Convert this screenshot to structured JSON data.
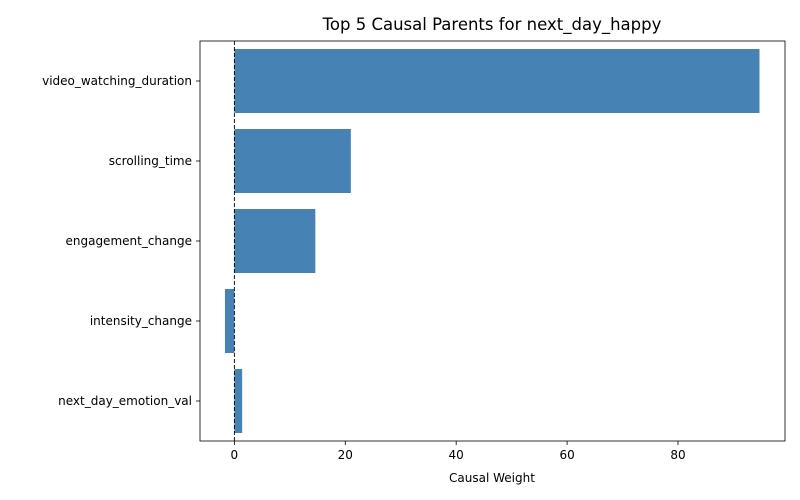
{
  "chart_data": {
    "type": "bar",
    "orientation": "horizontal",
    "title": "Top 5 Causal Parents for next_day_happy",
    "xlabel": "Causal Weight",
    "ylabel": "",
    "categories": [
      "video_watching_duration",
      "scrolling_time",
      "engagement_change",
      "intensity_change",
      "next_day_emotion_val"
    ],
    "values": [
      94.7,
      21.0,
      14.6,
      -1.7,
      1.4
    ],
    "xlim": [
      -6.2,
      99.3
    ],
    "xticks": [
      0,
      20,
      40,
      60,
      80
    ],
    "reference_line": 0,
    "grid": false,
    "bar_color": "#4682b4"
  }
}
